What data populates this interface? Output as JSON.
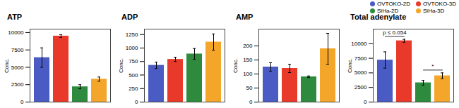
{
  "chart_data": [
    {
      "type": "bar",
      "title": "ATP",
      "categories": [
        "OVTOKO-2D",
        "OVTOKO-3D",
        "SiHa-2D",
        "SiHa-3D"
      ],
      "values": [
        6400,
        9500,
        2200,
        3300
      ],
      "errors": [
        1400,
        200,
        300,
        300
      ],
      "colors": [
        "#4a5cc4",
        "#e8392b",
        "#2e8b3e",
        "#f4a62a"
      ],
      "ylabel": "Conc.",
      "ylim": [
        0,
        10500
      ],
      "yticks": [
        0,
        2500,
        5000,
        7500,
        10000
      ],
      "tick_labels": "y"
    },
    {
      "type": "bar",
      "title": "ADP",
      "categories": [
        "OVTOKO-2D",
        "OVTOKO-3D",
        "SiHa-2D",
        "SiHa-3D"
      ],
      "values": [
        680,
        790,
        890,
        1110
      ],
      "errors": [
        60,
        40,
        100,
        150
      ],
      "colors": [
        "#4a5cc4",
        "#e8392b",
        "#2e8b3e",
        "#f4a62a"
      ],
      "ylabel": "Conc.",
      "ylim": [
        0,
        1350
      ],
      "yticks": [
        0,
        250,
        500,
        750,
        1000,
        1250
      ],
      "tick_labels": "y"
    },
    {
      "type": "bar",
      "title": "AMP",
      "categories": [
        "OVTOKO-2D",
        "OVTOKO-3D",
        "SiHa-2D",
        "SiHa-3D"
      ],
      "values": [
        125,
        120,
        90,
        190
      ],
      "errors": [
        15,
        15,
        3,
        55
      ],
      "colors": [
        "#4a5cc4",
        "#e8392b",
        "#2e8b3e",
        "#f4a62a"
      ],
      "ylabel": "Conc.",
      "ylim": [
        0,
        260
      ],
      "yticks": [
        0,
        50,
        100,
        150,
        200
      ],
      "tick_labels": "y"
    },
    {
      "type": "bar",
      "title": "Total adenylate",
      "categories": [
        "OVTOKO-2D",
        "OVTOKO-3D",
        "SiHa-2D",
        "SiHa-3D"
      ],
      "values": [
        7200,
        10500,
        3300,
        4500
      ],
      "errors": [
        1400,
        250,
        400,
        500
      ],
      "colors": [
        "#4a5cc4",
        "#e8392b",
        "#2e8b3e",
        "#f4a62a"
      ],
      "ylabel": "Conc.",
      "ylim": [
        0,
        12500
      ],
      "yticks": [
        0,
        2500,
        5000,
        7500,
        10000
      ],
      "tick_labels": "y",
      "legend": "top-right",
      "annotations": [
        {
          "text": "p ≤ 0.054",
          "from": "OVTOKO-2D",
          "to": "OVTOKO-3D"
        },
        {
          "text": "*",
          "from": "SiHa-2D",
          "to": "SiHa-3D"
        }
      ]
    }
  ]
}
